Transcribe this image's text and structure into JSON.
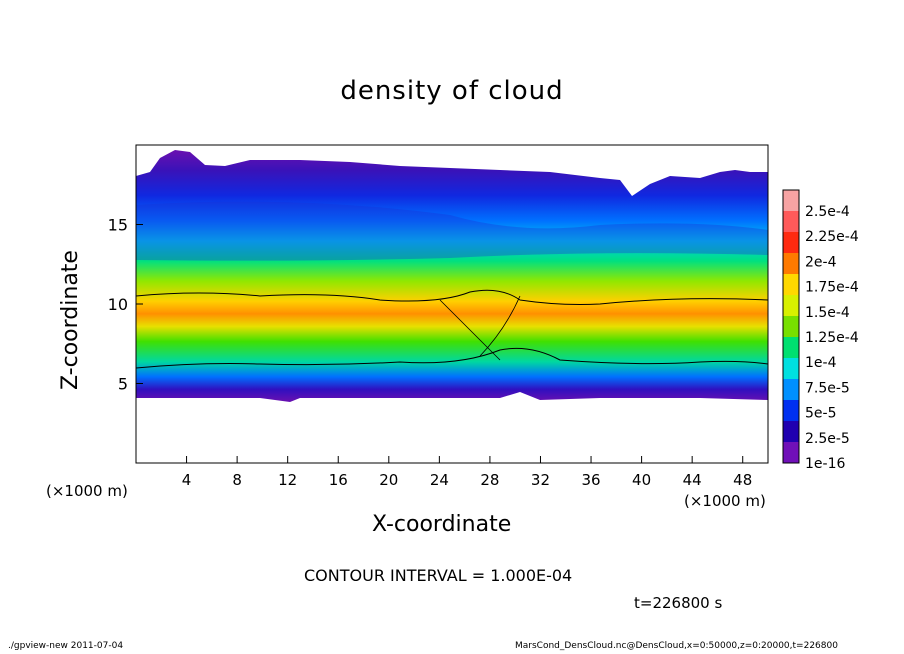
{
  "chart_data": {
    "type": "heatmap",
    "title": "density of cloud",
    "xlabel": "X-coordinate",
    "ylabel": "Z-coordinate",
    "x_unit_label": "(×1000 m)",
    "xlim": [
      0,
      50
    ],
    "ylim": [
      0,
      20
    ],
    "xticks": [
      "4",
      "8",
      "12",
      "16",
      "20",
      "24",
      "28",
      "32",
      "36",
      "40",
      "44",
      "48"
    ],
    "xtick_values": [
      4,
      8,
      12,
      16,
      20,
      24,
      28,
      32,
      36,
      40,
      44,
      48
    ],
    "yticks": [
      "5",
      "10",
      "15"
    ],
    "ytick_values": [
      5,
      10,
      15
    ],
    "colorbar": {
      "labels": [
        "2.5e-4",
        "2.25e-4",
        "2e-4",
        "1.75e-4",
        "1.5e-4",
        "1.25e-4",
        "1e-4",
        "7.5e-5",
        "5e-5",
        "2.5e-5",
        "1e-16"
      ],
      "colors": [
        "#f7a3a3",
        "#ff5a5a",
        "#ff2a10",
        "#ff7a00",
        "#ffd800",
        "#d8f000",
        "#78e000",
        "#00e070",
        "#00e0e0",
        "#0090ff",
        "#0030f0",
        "#2000b0",
        "#7010b8"
      ]
    },
    "contour_interval_text": "CONTOUR INTERVAL = 1.000E-04",
    "time_text": "t=226800 s",
    "grid": false,
    "legend": "right"
  },
  "footer": {
    "left": "./gpview-new   2011-07-04",
    "right": "MarsCond_DensCloud.nc@DensCloud,x=0:50000,z=0:20000,t=226800"
  }
}
